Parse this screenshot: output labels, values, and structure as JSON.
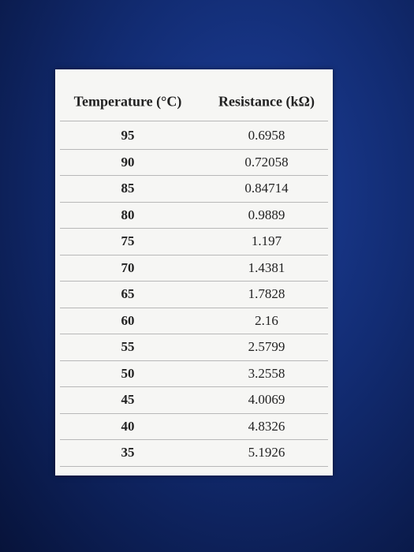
{
  "table": {
    "header": [
      "Temperature (°C)",
      "Resistance (kΩ)"
    ],
    "rows": [
      [
        "95",
        "0.6958"
      ],
      [
        "90",
        "0.72058"
      ],
      [
        "85",
        "0.84714"
      ],
      [
        "80",
        "0.9889"
      ],
      [
        "75",
        "1.197"
      ],
      [
        "70",
        "1.4381"
      ],
      [
        "65",
        "1.7828"
      ],
      [
        "60",
        "2.16"
      ],
      [
        "55",
        "2.5799"
      ],
      [
        "50",
        "3.2558"
      ],
      [
        "45",
        "4.0069"
      ],
      [
        "40",
        "4.8326"
      ],
      [
        "35",
        "5.1926"
      ]
    ]
  }
}
